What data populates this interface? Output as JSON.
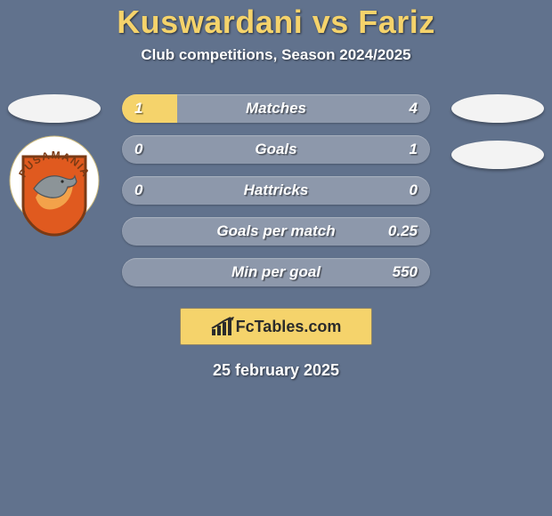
{
  "background_color": "#61728d",
  "title": {
    "text": "Kuswardani vs Fariz",
    "color": "#f5d36b",
    "fontsize": 36
  },
  "subtitle": {
    "text": "Club competitions, Season 2024/2025",
    "color": "#ffffff",
    "fontsize": 17
  },
  "avatars": {
    "placeholder_fill": "#f3f3f3",
    "left_club": {
      "ring_color": "#ffffff",
      "shield_fill": "#e05a1f",
      "shield_border": "#7b3a14",
      "arc_text": "PUSAMANIA",
      "arc_text_color": "#7b3a14",
      "dolphin_color": "#8c9498",
      "island_color": "#f3a24a"
    }
  },
  "stats": {
    "bar_bg": "#8d98ab",
    "fill_color": "#f5d36b",
    "text_color": "#ffffff",
    "rows": [
      {
        "label": "Matches",
        "left": "1",
        "right": "4",
        "left_pct": 18,
        "right_pct": 0
      },
      {
        "label": "Goals",
        "left": "0",
        "right": "1",
        "left_pct": 0,
        "right_pct": 0
      },
      {
        "label": "Hattricks",
        "left": "0",
        "right": "0",
        "left_pct": 0,
        "right_pct": 0
      },
      {
        "label": "Goals per match",
        "left": "",
        "right": "0.25",
        "left_pct": 0,
        "right_pct": 0
      },
      {
        "label": "Min per goal",
        "left": "",
        "right": "550",
        "left_pct": 0,
        "right_pct": 0
      }
    ]
  },
  "brand": {
    "box_bg": "#f5d36b",
    "box_border": "#8c846a",
    "text": "FcTables.com",
    "text_color": "#2b2b2b",
    "icon_color": "#2b2b2b"
  },
  "date": {
    "text": "25 february 2025",
    "color": "#ffffff",
    "fontsize": 18
  }
}
